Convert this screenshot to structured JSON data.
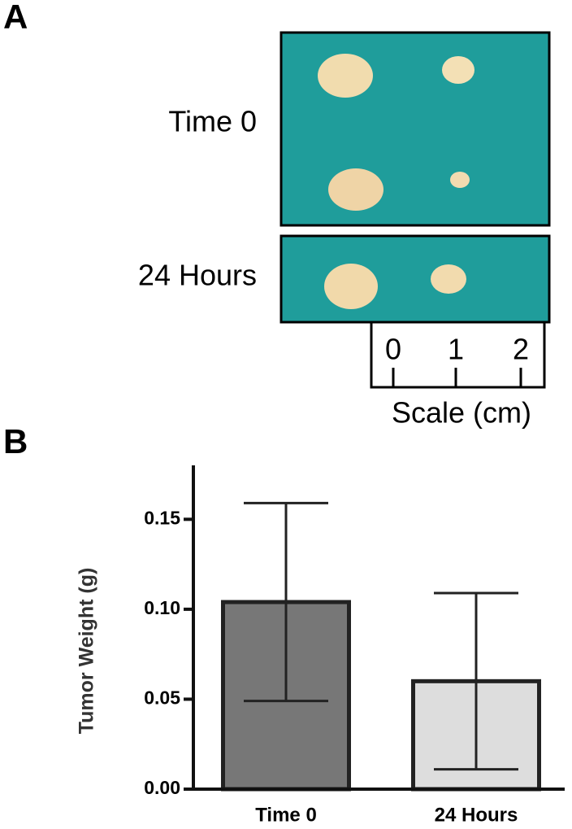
{
  "panel_a": {
    "label": "A",
    "rows": [
      "Time 0",
      "24 Hours"
    ],
    "scale": {
      "ticks": [
        "0",
        "1",
        "2"
      ],
      "label": "Scale (cm)"
    }
  },
  "chart_data": {
    "type": "bar",
    "panel_label": "B",
    "y_label": "Tumor Weight (g)",
    "categories": [
      "Time 0",
      "24 Hours"
    ],
    "values": [
      0.104,
      0.06
    ],
    "errors": [
      0.055,
      0.049
    ],
    "colors": [
      "#777777",
      "#dddddd"
    ],
    "ylim": [
      0,
      0.18
    ],
    "yticks": [
      {
        "value": 0,
        "label": "0.00"
      },
      0.05,
      {
        "value": 0.1,
        "label": "0.10"
      },
      0.15
    ]
  }
}
